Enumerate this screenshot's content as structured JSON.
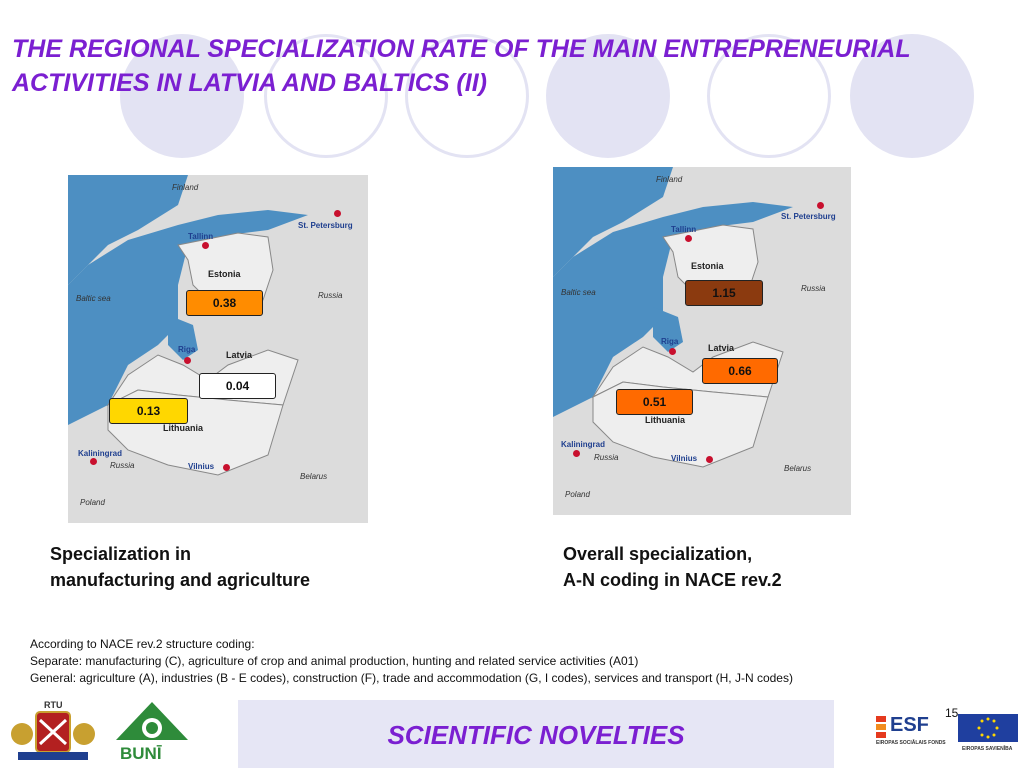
{
  "title": "THE REGIONAL SPECIALIZATION RATE OF THE MAIN ENTREPRENEURIAL ACTIVITIES IN LATVIA AND BALTICS (II)",
  "map_labels": {
    "finland": "Finland",
    "st_petersburg": "St. Petersburg",
    "tallinn": "Tallinn",
    "estonia": "Estonia",
    "baltic_sea": "Baltic sea",
    "russia": "Russia",
    "riga": "Riga",
    "latvia": "Latvia",
    "lithuania": "Lithuania",
    "kaliningrad": "Kaliningrad",
    "russia_kaliningrad": "Russia",
    "vilnius": "Vilnius",
    "belarus": "Belarus",
    "poland": "Poland"
  },
  "map_left": {
    "estonia_value": "0.38",
    "latvia_value": "0.04",
    "lithuania_value": "0.13",
    "colors": {
      "estonia": "#ff8c00",
      "latvia": "#ffffff",
      "lithuania": "#ffd700"
    }
  },
  "map_right": {
    "estonia_value": "1.15",
    "latvia_value": "0.66",
    "lithuania_value": "0.51",
    "colors": {
      "estonia": "#8b3a0f",
      "latvia": "#ff6a00",
      "lithuania": "#ff6a00"
    }
  },
  "caption_left": [
    "Specialization in",
    "manufacturing and agriculture"
  ],
  "caption_right": [
    "Overall specialization,",
    "A-N coding in NACE rev.2"
  ],
  "notes": [
    "According to NACE rev.2 structure coding:",
    "Separate: manufacturing (C), agriculture of crop and animal production, hunting and related service activities (A01)",
    "General: agriculture (A), industries (B - E codes), construction (F), trade and accommodation (G, I codes), services and transport (H, J-N codes)"
  ],
  "banner": "SCIENTIFIC NOVELTIES",
  "page_number": "15",
  "logos": {
    "rtu": "RTU",
    "buni": "BUNĪ",
    "esf": "ESF",
    "esf_sub": "EIROPAS SOCIĀLAIS FONDS",
    "eu_sub": "EIROPAS SAVIENĪBA"
  }
}
